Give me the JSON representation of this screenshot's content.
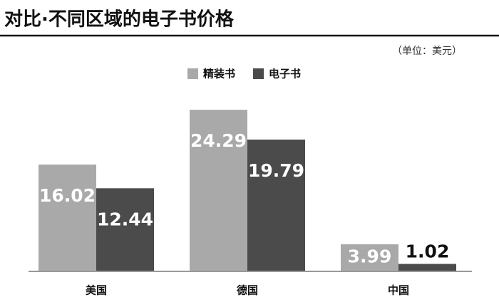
{
  "chart_data": {
    "type": "bar",
    "title": "对比·不同区域的电子书价格",
    "subtitle": "（单位：美元）",
    "categories": [
      "美国",
      "德国",
      "中国"
    ],
    "series": [
      {
        "name": "精装书",
        "color": "#a9a9a9",
        "values": [
          16.02,
          24.29,
          3.99
        ]
      },
      {
        "name": "电子书",
        "color": "#4b4b4b",
        "values": [
          12.44,
          19.79,
          1.02
        ]
      }
    ]
  }
}
